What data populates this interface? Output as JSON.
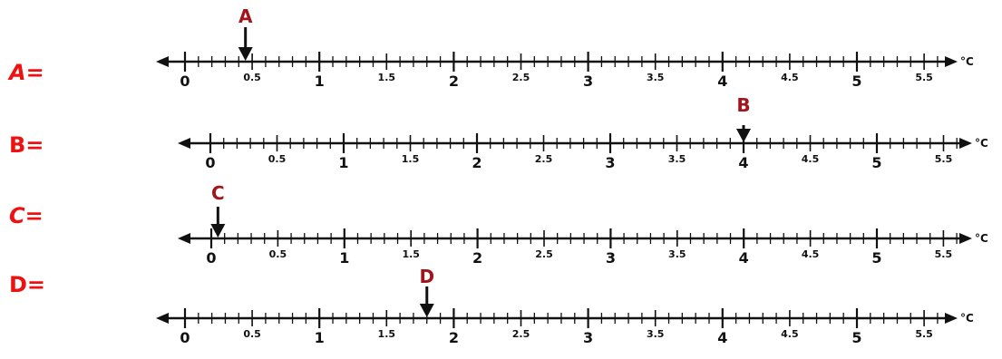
{
  "unit": "°C",
  "tick_labels": [
    "0",
    "0.5",
    "1",
    "1.5",
    "2",
    "2.5",
    "3",
    "3.5",
    "4",
    "4.5",
    "5",
    "5.5"
  ],
  "questions": [
    {
      "label": "A=",
      "marker": "A",
      "value": 0.45
    },
    {
      "label": "B=",
      "marker": "B",
      "value": 4.0
    },
    {
      "label": "C=",
      "marker": "C",
      "value": 0.05
    },
    {
      "label": "D=",
      "marker": "D",
      "value": 1.8
    }
  ],
  "colors": {
    "question_label": "#ee1111",
    "marker_letter": "#a0161c",
    "line": "#111111"
  }
}
